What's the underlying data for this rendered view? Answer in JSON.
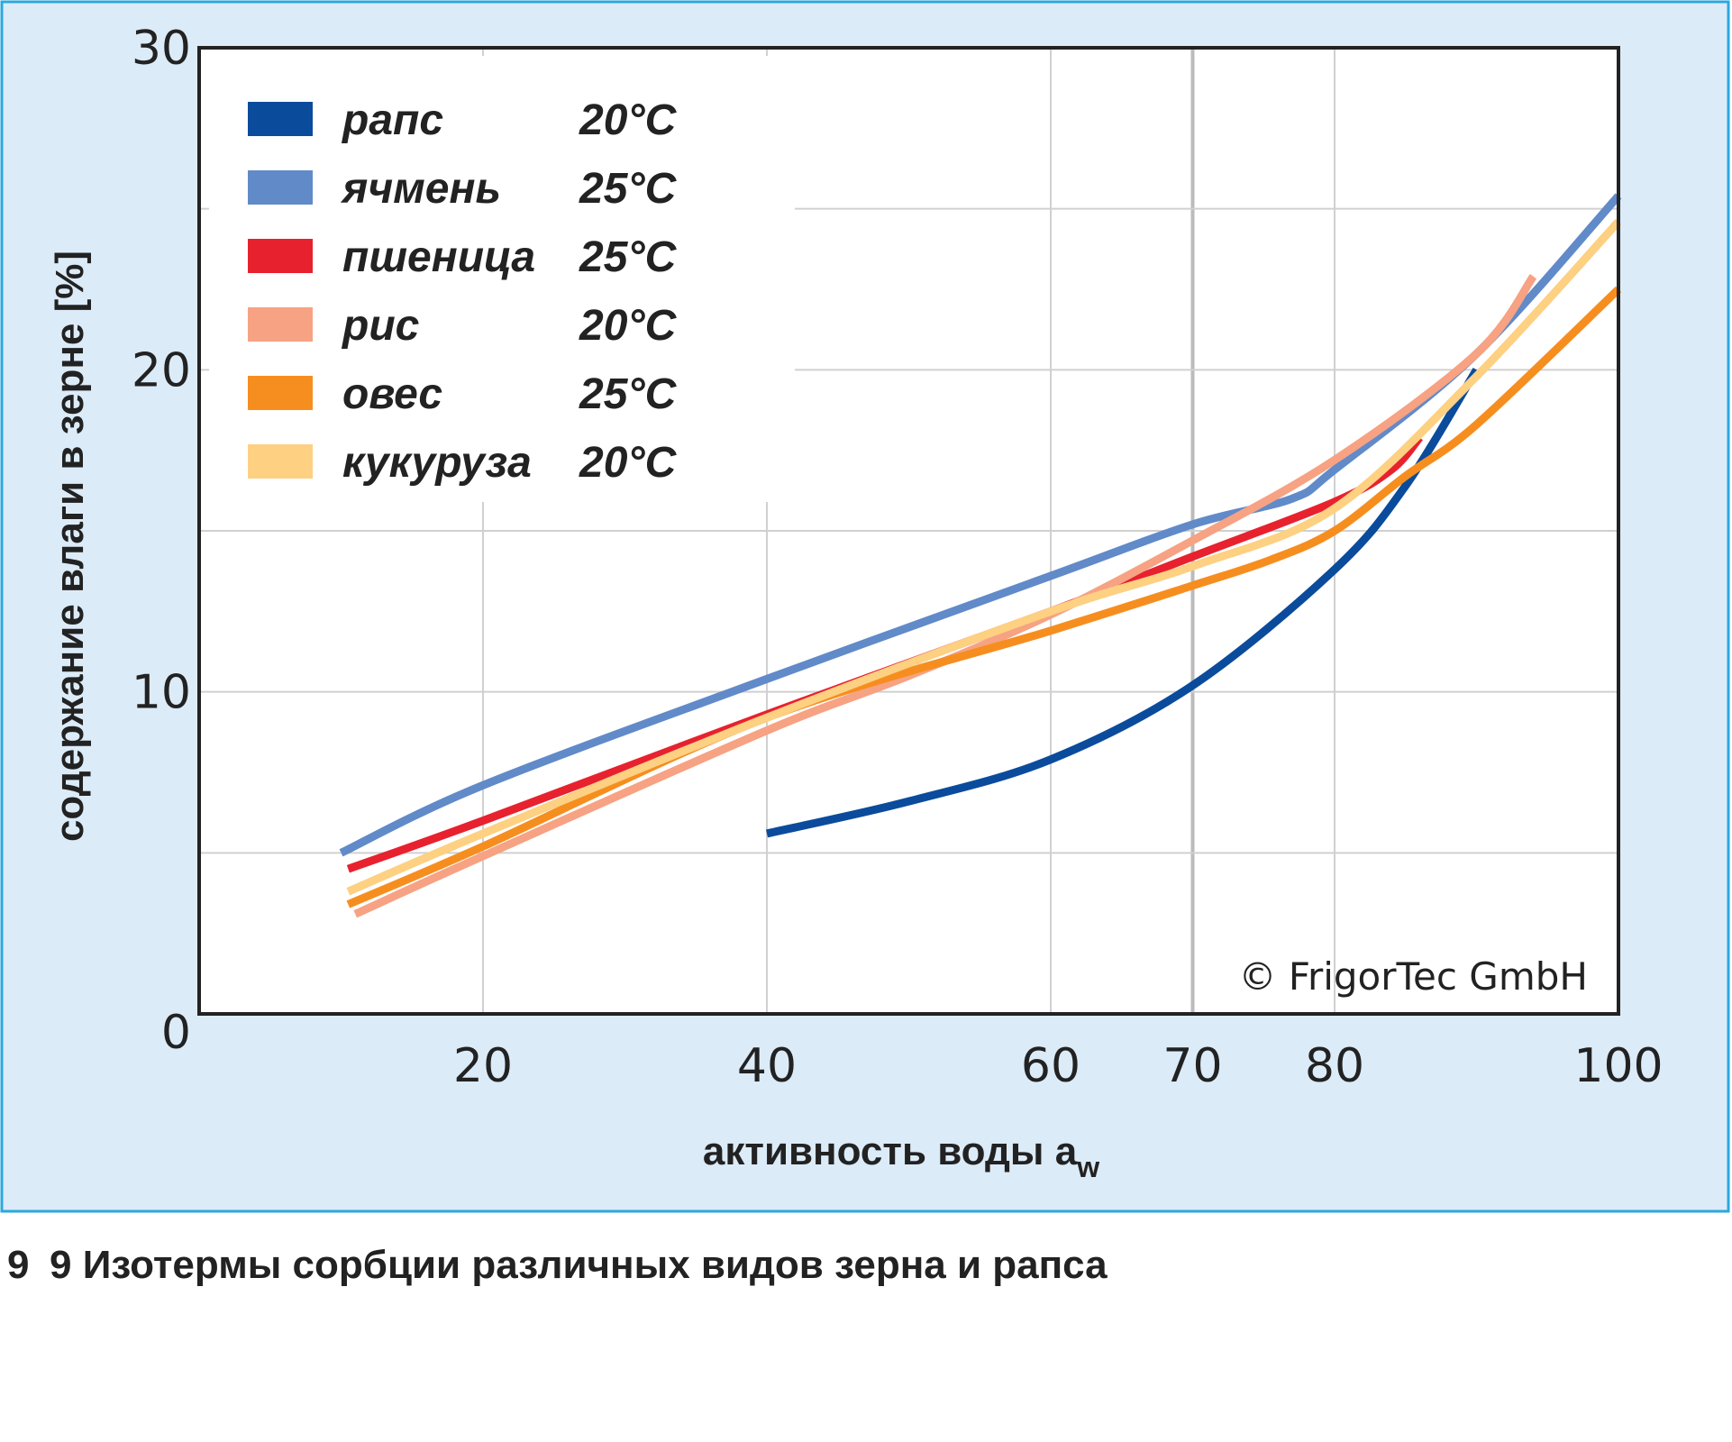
{
  "chart_data": {
    "type": "line",
    "title": "",
    "xlabel": "активность воды a",
    "xlabel_subscript": "w",
    "ylabel": "содержание влаги в зерне [%]",
    "xlim": [
      0,
      100
    ],
    "ylim": [
      0,
      30
    ],
    "x_ticks": [
      20,
      40,
      60,
      70,
      80,
      100
    ],
    "y_ticks": [
      0,
      10,
      20,
      30
    ],
    "y_grid": [
      5,
      10,
      15,
      20,
      25
    ],
    "grid": true,
    "legend_position": "top-left",
    "copyright": "© FrigorTec GmbH",
    "series": [
      {
        "name": "рапс",
        "temp": "20°C",
        "color": "#0b4b9c",
        "x": [
          40,
          50,
          60,
          70,
          80,
          85,
          90
        ],
        "y": [
          5.6,
          6.6,
          7.9,
          10.2,
          13.8,
          16.4,
          20.0
        ]
      },
      {
        "name": "ячмень",
        "temp": "25°C",
        "color": "#618ac9",
        "x": [
          10,
          20,
          40,
          60,
          70,
          77,
          80,
          90,
          100
        ],
        "y": [
          5.0,
          7.1,
          10.4,
          13.6,
          15.2,
          16.0,
          16.9,
          20.5,
          25.4
        ]
      },
      {
        "name": "пшеница",
        "temp": "25°C",
        "color": "#e8212f",
        "x": [
          10.5,
          20,
          40,
          60,
          70,
          80,
          84,
          86
        ],
        "y": [
          4.5,
          6.0,
          9.3,
          12.5,
          14.2,
          15.9,
          16.9,
          17.9
        ]
      },
      {
        "name": "рис",
        "temp": "20°C",
        "color": "#f6a283",
        "x": [
          11,
          20,
          40,
          50,
          60,
          70,
          80,
          90,
          94
        ],
        "y": [
          3.1,
          4.9,
          8.8,
          10.5,
          12.4,
          14.7,
          17.2,
          20.5,
          22.9
        ]
      },
      {
        "name": "овес",
        "temp": "25°C",
        "color": "#f68e1f",
        "x": [
          10.5,
          20,
          40,
          60,
          70,
          75.5,
          80,
          85,
          90,
          100
        ],
        "y": [
          3.4,
          5.2,
          9.2,
          11.9,
          13.3,
          14.1,
          15.0,
          16.7,
          18.3,
          22.5
        ]
      },
      {
        "name": "кукуруза",
        "temp": "20°C",
        "color": "#fdd082",
        "x": [
          10.5,
          20,
          40,
          60,
          70,
          80,
          90,
          100
        ],
        "y": [
          3.8,
          5.6,
          9.2,
          12.5,
          13.9,
          15.7,
          19.8,
          24.6
        ]
      }
    ]
  },
  "caption": {
    "number": "9",
    "text": "9 Изотермы сорбции различных видов зерна и рапса"
  },
  "colors": {
    "panel": "#dcebf8",
    "panel_border": "#2aa8e0",
    "grid": "#c8c8c8",
    "axis": "#222222"
  }
}
